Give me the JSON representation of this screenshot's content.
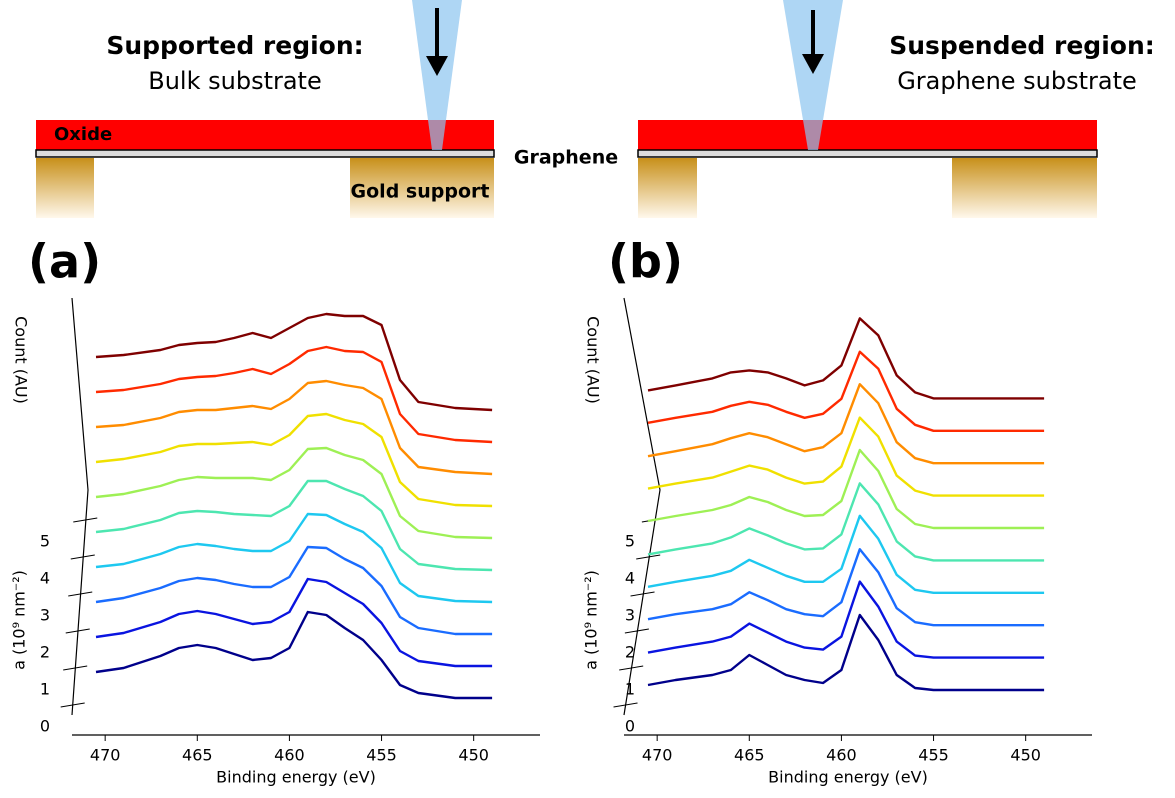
{
  "diagram": {
    "left": {
      "heading": "Supported region:",
      "subheading": "Bulk substrate",
      "oxide": "Oxide",
      "support": "Gold support"
    },
    "graphene": "Graphene",
    "right": {
      "heading": "Suspended region:",
      "subheading": "Graphene substrate"
    }
  },
  "chart_data": [
    {
      "type": "line",
      "title": "(a)",
      "xlabel": "Binding energy (eV)",
      "ylabel": "Count (AU)",
      "zlabel": "a (10⁹ nm⁻²)",
      "xlim": [
        471.8,
        446.4
      ],
      "xticks": [
        470,
        465,
        460,
        455,
        450
      ],
      "zlim": [
        0,
        5
      ],
      "zticks": [
        0,
        1,
        2,
        3,
        4,
        5
      ],
      "x": [
        470.5,
        469,
        467,
        466,
        465,
        464,
        463,
        462,
        461,
        460,
        459,
        458,
        457,
        456,
        455,
        454,
        453,
        451,
        449
      ],
      "series": [
        {
          "color": "#00008b",
          "values": [
            26,
            30,
            42,
            50,
            53,
            50,
            44,
            38,
            40,
            50,
            86,
            83,
            70,
            58,
            38,
            13,
            5,
            0,
            0
          ]
        },
        {
          "color": "#0a14e0",
          "values": [
            29,
            33,
            44,
            52,
            55,
            52,
            47,
            42,
            44,
            54,
            87,
            84,
            73,
            62,
            43,
            15,
            5,
            0,
            0
          ]
        },
        {
          "color": "#1a6cff",
          "values": [
            32,
            36,
            46,
            53,
            56,
            54,
            50,
            47,
            47,
            57,
            87,
            86,
            75,
            66,
            48,
            17,
            6,
            0,
            0
          ]
        },
        {
          "color": "#1ec8f0",
          "values": [
            35,
            38,
            48,
            55,
            58,
            56,
            53,
            51,
            51,
            61,
            88,
            87,
            78,
            70,
            54,
            19,
            6,
            1,
            0
          ]
        },
        {
          "color": "#4de6b0",
          "values": [
            38,
            41,
            50,
            57,
            59,
            58,
            56,
            55,
            54,
            64,
            89,
            89,
            81,
            74,
            59,
            21,
            6,
            1,
            0
          ]
        },
        {
          "color": "#9ef055",
          "values": [
            41,
            44,
            52,
            58,
            61,
            60,
            60,
            60,
            58,
            68,
            89,
            90,
            83,
            78,
            64,
            22,
            7,
            1,
            0
          ]
        },
        {
          "color": "#f0e000",
          "values": [
            44,
            47,
            54,
            60,
            62,
            62,
            63,
            64,
            61,
            71,
            90,
            92,
            86,
            82,
            69,
            24,
            7,
            1,
            0
          ]
        },
        {
          "color": "#ff8c00",
          "values": [
            47,
            49,
            56,
            62,
            64,
            64,
            66,
            68,
            65,
            75,
            91,
            93,
            89,
            86,
            75,
            26,
            7,
            2,
            0
          ]
        },
        {
          "color": "#ff2a00",
          "values": [
            50,
            52,
            58,
            63,
            65,
            66,
            69,
            73,
            68,
            78,
            91,
            95,
            91,
            90,
            80,
            28,
            8,
            2,
            0
          ]
        },
        {
          "color": "#7f0000",
          "values": [
            53,
            55,
            60,
            65,
            67,
            68,
            72,
            77,
            72,
            82,
            92,
            96,
            94,
            94,
            85,
            30,
            8,
            2,
            0
          ]
        }
      ]
    },
    {
      "type": "line",
      "title": "(b)",
      "xlabel": "Binding energy (eV)",
      "ylabel": "Count (AU)",
      "zlabel": "a (10⁹ nm⁻²)",
      "xlim": [
        471.8,
        446.4
      ],
      "xticks": [
        470,
        465,
        460,
        455,
        450
      ],
      "zlim": [
        0,
        5
      ],
      "zticks": [
        0,
        1,
        2,
        3,
        4,
        5
      ],
      "x": [
        470.5,
        469,
        467,
        466,
        465,
        464,
        463,
        462,
        461,
        460,
        459,
        458,
        457,
        456,
        455,
        454,
        453,
        451,
        449
      ],
      "series": [
        {
          "color": "#00008b",
          "values": [
            5,
            10,
            15,
            20,
            35,
            25,
            15,
            10,
            7,
            20,
            75,
            50,
            15,
            2,
            0,
            0,
            0,
            0,
            0
          ]
        },
        {
          "color": "#0a14e0",
          "values": [
            5,
            10,
            16,
            21,
            34,
            25,
            16,
            10,
            8,
            21,
            76,
            51,
            16,
            2,
            0,
            0,
            0,
            0,
            0
          ]
        },
        {
          "color": "#1a6cff",
          "values": [
            6,
            11,
            16,
            21,
            33,
            25,
            16,
            11,
            9,
            23,
            76,
            53,
            17,
            3,
            0,
            0,
            0,
            0,
            0
          ]
        },
        {
          "color": "#1ec8f0",
          "values": [
            6,
            11,
            17,
            22,
            33,
            25,
            17,
            11,
            11,
            24,
            77,
            54,
            18,
            3,
            0,
            0,
            0,
            0,
            0
          ]
        },
        {
          "color": "#4de6b0",
          "values": [
            6,
            11,
            17,
            23,
            32,
            25,
            17,
            11,
            12,
            26,
            77,
            56,
            19,
            4,
            0,
            0,
            0,
            0,
            0
          ]
        },
        {
          "color": "#9ef055",
          "values": [
            7,
            12,
            18,
            23,
            31,
            26,
            18,
            12,
            13,
            27,
            78,
            57,
            19,
            4,
            0,
            0,
            0,
            0,
            0
          ]
        },
        {
          "color": "#f0e000",
          "values": [
            7,
            12,
            18,
            24,
            30,
            26,
            18,
            12,
            14,
            29,
            78,
            59,
            20,
            5,
            0,
            0,
            0,
            0,
            0
          ]
        },
        {
          "color": "#ff8c00",
          "values": [
            7,
            12,
            19,
            25,
            30,
            26,
            19,
            12,
            16,
            30,
            79,
            60,
            21,
            5,
            0,
            0,
            0,
            0,
            0
          ]
        },
        {
          "color": "#ff2a00",
          "values": [
            8,
            13,
            19,
            25,
            29,
            26,
            19,
            13,
            17,
            32,
            79,
            62,
            22,
            6,
            0,
            0,
            0,
            0,
            0
          ]
        },
        {
          "color": "#7f0000",
          "values": [
            8,
            13,
            20,
            26,
            28,
            26,
            20,
            13,
            18,
            33,
            80,
            63,
            23,
            6,
            0,
            0,
            0,
            0,
            0
          ]
        }
      ]
    }
  ]
}
